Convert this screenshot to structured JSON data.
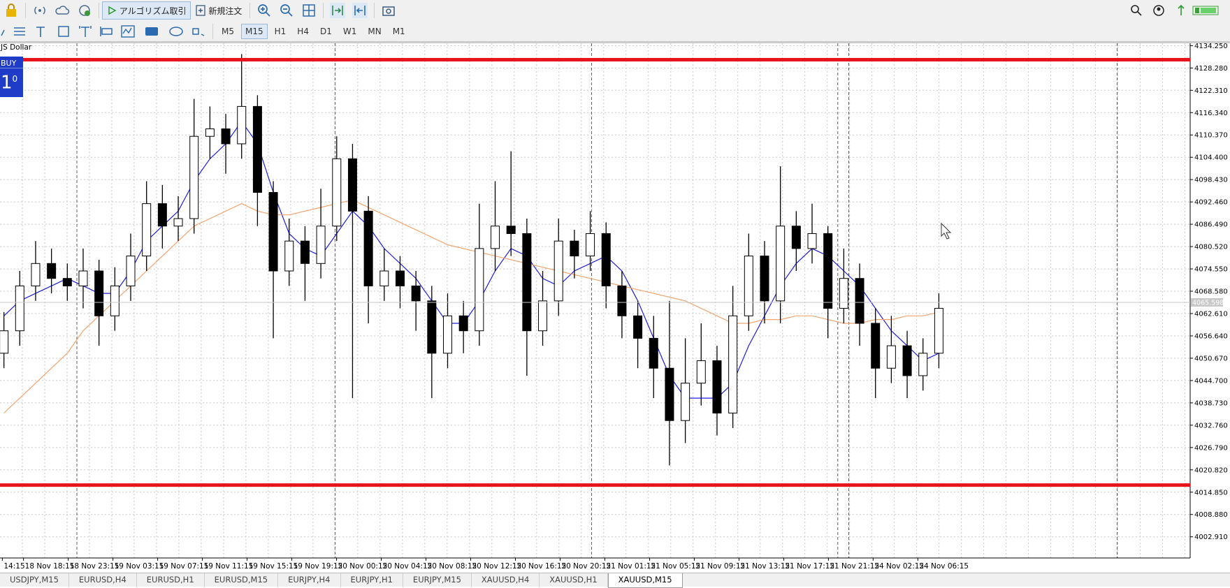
{
  "toolbar": {
    "algo_trading": "アルゴリズム取引",
    "new_order": "新規注文",
    "timeframes": [
      {
        "label": "M5",
        "selected": false
      },
      {
        "label": "M15",
        "selected": true
      },
      {
        "label": "H1",
        "selected": false
      },
      {
        "label": "H4",
        "selected": false
      },
      {
        "label": "D1",
        "selected": false
      },
      {
        "label": "W1",
        "selected": false
      },
      {
        "label": "MN",
        "selected": false
      },
      {
        "label": "M1",
        "selected": false
      }
    ]
  },
  "trade_panel": {
    "action": "BUY",
    "lots": "1",
    "lots_sup": "0"
  },
  "chart_data": {
    "type": "candlestick",
    "symbol_label": "JS Dollar",
    "x_labels": [
      "14:15",
      "18 Nov 18:15",
      "18 Nov 23:15",
      "19 Nov 03:15",
      "19 Nov 07:15",
      "19 Nov 11:15",
      "19 Nov 15:15",
      "19 Nov 19:15",
      "20 Nov 00:15",
      "20 Nov 04:15",
      "20 Nov 08:15",
      "20 Nov 12:15",
      "20 Nov 16:15",
      "20 Nov 20:15",
      "21 Nov 01:15",
      "21 Nov 05:15",
      "21 Nov 09:15",
      "21 Nov 13:15",
      "21 Nov 17:15",
      "21 Nov 21:15",
      "24 Nov 02:15",
      "24 Nov 06:15"
    ],
    "ylim": [
      3997.25,
      4134.88
    ],
    "yticks": [
      {
        "value": 4134.25,
        "label": "4134.250"
      },
      {
        "value": 4128.28,
        "label": "4128.280"
      },
      {
        "value": 4122.31,
        "label": "4122.310"
      },
      {
        "value": 4116.34,
        "label": "4116.340"
      },
      {
        "value": 4110.37,
        "label": "4110.370"
      },
      {
        "value": 4104.4,
        "label": "4104.400"
      },
      {
        "value": 4098.43,
        "label": "4098.430"
      },
      {
        "value": 4092.46,
        "label": "4092.460"
      },
      {
        "value": 4086.49,
        "label": "4086.490"
      },
      {
        "value": 4080.52,
        "label": "4080.520"
      },
      {
        "value": 4074.55,
        "label": "4074.550"
      },
      {
        "value": 4068.58,
        "label": "4068.580"
      },
      {
        "value": 4062.61,
        "label": "4062.610"
      },
      {
        "value": 4056.64,
        "label": "4056.640"
      },
      {
        "value": 4050.67,
        "label": "4050.670"
      },
      {
        "value": 4044.7,
        "label": "4044.700"
      },
      {
        "value": 4038.73,
        "label": "4038.730"
      },
      {
        "value": 4032.76,
        "label": "4032.760"
      },
      {
        "value": 4026.79,
        "label": "4026.790"
      },
      {
        "value": 4020.82,
        "label": "4020.820"
      },
      {
        "value": 4014.85,
        "label": "4014.850"
      },
      {
        "value": 4008.88,
        "label": "4008.880"
      },
      {
        "value": 4002.91,
        "label": "4002.910"
      }
    ],
    "open": [
      4052,
      4058,
      4070,
      4076,
      4072,
      4070,
      4074,
      4062,
      4070,
      4078,
      4092,
      4086,
      4088,
      4110,
      4112,
      4108,
      4118,
      4095,
      4074,
      4082,
      4076,
      4086,
      4104,
      4090,
      4070,
      4074,
      4070,
      4066,
      4052,
      4062,
      4058,
      4080,
      4086,
      4084,
      4058,
      4066,
      4082,
      4078,
      4084,
      4070,
      4062,
      4056,
      4048,
      4034,
      4044,
      4050,
      4036,
      4062,
      4078,
      4066,
      4086,
      4080,
      4084,
      4064,
      4072,
      4060,
      4048,
      4054,
      4046,
      4052
    ],
    "high": [
      4063,
      4074,
      4082,
      4080,
      4076,
      4080,
      4077,
      4075,
      4084,
      4098,
      4097,
      4094,
      4120,
      4118,
      4116,
      4132,
      4121,
      4098,
      4088,
      4086,
      4096,
      4110,
      4108,
      4094,
      4080,
      4078,
      4074,
      4070,
      4068,
      4066,
      4092,
      4098,
      4106,
      4088,
      4074,
      4088,
      4085,
      4090,
      4087,
      4074,
      4066,
      4062,
      4066,
      4056,
      4060,
      4054,
      4070,
      4084,
      4082,
      4102,
      4090,
      4092,
      4086,
      4080,
      4076,
      4064,
      4062,
      4058,
      4056,
      4068
    ],
    "low": [
      4048,
      4054,
      4066,
      4068,
      4066,
      4064,
      4054,
      4058,
      4066,
      4074,
      4080,
      4082,
      4084,
      4104,
      4100,
      4104,
      4086,
      4056,
      4070,
      4066,
      4072,
      4082,
      4040,
      4060,
      4066,
      4064,
      4058,
      4040,
      4048,
      4052,
      4054,
      4074,
      4078,
      4046,
      4054,
      4062,
      4072,
      4074,
      4064,
      4056,
      4048,
      4040,
      4022,
      4028,
      4038,
      4030,
      4032,
      4058,
      4060,
      4060,
      4074,
      4076,
      4056,
      4060,
      4054,
      4040,
      4044,
      4040,
      4042,
      4048
    ],
    "close": [
      4058,
      4070,
      4076,
      4072,
      4070,
      4074,
      4062,
      4070,
      4078,
      4092,
      4086,
      4088,
      4110,
      4112,
      4108,
      4118,
      4095,
      4074,
      4082,
      4076,
      4086,
      4104,
      4090,
      4070,
      4074,
      4070,
      4066,
      4052,
      4062,
      4058,
      4080,
      4086,
      4084,
      4058,
      4066,
      4082,
      4078,
      4084,
      4070,
      4062,
      4056,
      4048,
      4034,
      4044,
      4050,
      4036,
      4062,
      4078,
      4066,
      4086,
      4080,
      4084,
      4064,
      4072,
      4060,
      4048,
      4054,
      4046,
      4052,
      4064
    ],
    "moving_averages": [
      {
        "color": "#1f1fe0",
        "values": [
          4062,
          4066,
          4068,
          4070,
          4072,
          4070,
          4068,
          4068,
          4074,
          4082,
          4086,
          4090,
          4098,
          4104,
          4108,
          4114,
          4108,
          4095,
          4084,
          4080,
          4078,
          4084,
          4090,
          4086,
          4080,
          4076,
          4072,
          4066,
          4060,
          4060,
          4066,
          4074,
          4080,
          4078,
          4072,
          4070,
          4074,
          4076,
          4078,
          4074,
          4066,
          4056,
          4046,
          4040,
          4040,
          4040,
          4044,
          4054,
          4062,
          4070,
          4076,
          4080,
          4078,
          4074,
          4070,
          4064,
          4058,
          4054,
          4050,
          4052
        ]
      },
      {
        "color": "#f2a46e",
        "values": [
          4036,
          4040,
          4044,
          4048,
          4052,
          4058,
          4062,
          4066,
          4070,
          4074,
          4078,
          4082,
          4086,
          4088,
          4090,
          4092,
          4090,
          4089,
          4089,
          4090,
          4091,
          4092,
          4093,
          4091,
          4089,
          4087,
          4085,
          4083,
          4081,
          4080,
          4079,
          4078,
          4077,
          4076,
          4075,
          4074,
          4073,
          4072,
          4071,
          4070,
          4069,
          4068,
          4067,
          4066,
          4064,
          4062,
          4060,
          4060,
          4061,
          4061,
          4062,
          4062,
          4061,
          4060,
          4060,
          4061,
          4061,
          4062,
          4062,
          4063
        ]
      }
    ],
    "hlines": [
      {
        "value": 4130.48,
        "color": "#e8141c"
      },
      {
        "value": 4016.74,
        "color": "#e8141c"
      }
    ],
    "current_price": 4065.598,
    "current_price_color": "#c8c8c8",
    "bull_color": "#ffffff",
    "bear_color": "#000000",
    "grid": true
  },
  "tabs": [
    {
      "label": "USDJPY,M15",
      "active": false
    },
    {
      "label": "EURUSD,H4",
      "active": false
    },
    {
      "label": "EURUSD,H1",
      "active": false
    },
    {
      "label": "EURUSD,M15",
      "active": false
    },
    {
      "label": "EURJPY,H4",
      "active": false
    },
    {
      "label": "EURJPY,H1",
      "active": false
    },
    {
      "label": "EURJPY,M15",
      "active": false
    },
    {
      "label": "XAUUSD,H4",
      "active": false
    },
    {
      "label": "XAUUSD,H1",
      "active": false
    },
    {
      "label": "XAUUSD,M15",
      "active": true
    }
  ]
}
